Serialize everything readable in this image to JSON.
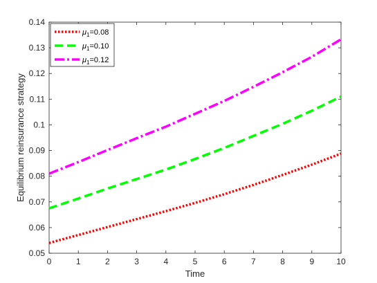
{
  "chart_data": {
    "type": "line",
    "xlabel": "Time",
    "ylabel": "Equilibrium reinsurance strategy",
    "xlim": [
      0,
      10
    ],
    "ylim": [
      0.05,
      0.14
    ],
    "xticks": [
      0,
      1,
      2,
      3,
      4,
      5,
      6,
      7,
      8,
      9,
      10
    ],
    "xtick_labels": [
      "0",
      "1",
      "2",
      "3",
      "4",
      "5",
      "6",
      "7",
      "8",
      "9",
      "10"
    ],
    "yticks": [
      0.05,
      0.06,
      0.07,
      0.08,
      0.09,
      0.1,
      0.11,
      0.12,
      0.13,
      0.14
    ],
    "ytick_labels": [
      "0.05",
      "0.06",
      "0.07",
      "0.08",
      "0.09",
      "0.1",
      "0.11",
      "0.12",
      "0.13",
      "0.14"
    ],
    "grid": false,
    "legend_position": "top-left",
    "x": [
      0,
      1,
      2,
      3,
      4,
      5,
      6,
      7,
      8,
      9,
      10
    ],
    "series": [
      {
        "name_symbol": "μ",
        "name_subscript": "1",
        "name_value": "=0.08",
        "color": "#ff0000",
        "line_style": "dotted",
        "values": [
          0.054,
          0.0571,
          0.0602,
          0.0633,
          0.0664,
          0.0696,
          0.073,
          0.0766,
          0.0805,
          0.0845,
          0.0888
        ]
      },
      {
        "name_symbol": "μ",
        "name_subscript": "1",
        "name_value": "=0.10",
        "color": "#00ff00",
        "line_style": "dashed",
        "values": [
          0.0675,
          0.0713,
          0.0752,
          0.0789,
          0.0826,
          0.0867,
          0.091,
          0.0957,
          0.1004,
          0.1055,
          0.111
        ]
      },
      {
        "name_symbol": "μ",
        "name_subscript": "1",
        "name_value": "=0.12",
        "color": "#ff00ff",
        "line_style": "dashdot",
        "values": [
          0.081,
          0.0855,
          0.0902,
          0.0948,
          0.0993,
          0.1043,
          0.1093,
          0.1148,
          0.1205,
          0.1265,
          0.1333
        ]
      }
    ]
  }
}
